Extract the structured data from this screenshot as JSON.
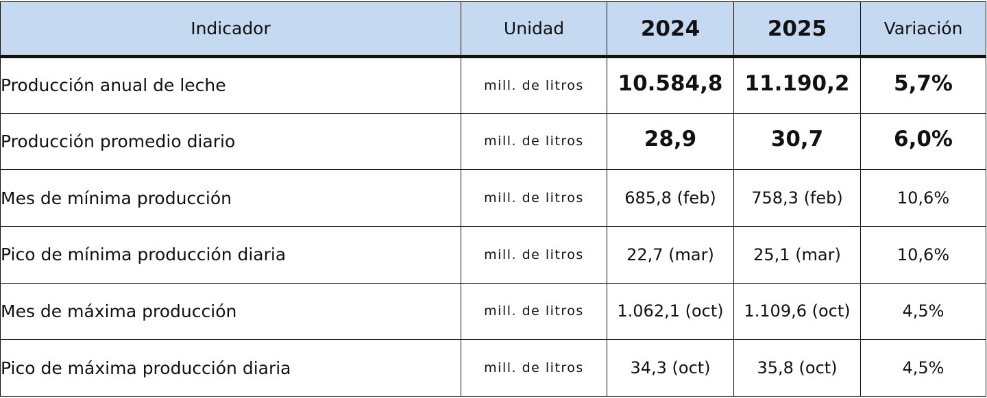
{
  "table": {
    "headers": {
      "indicador": "Indicador",
      "unidad": "Unidad",
      "year1": "2024",
      "year2": "2025",
      "variacion": "Variación"
    },
    "header_bg": "#c5d9f1",
    "rows": [
      {
        "indicador": "Producción anual de leche",
        "unidad": "mill. de litros",
        "v2024": "10.584,8",
        "v2025": "11.190,2",
        "variacion": "5,7%",
        "emphasis": true
      },
      {
        "indicador": "Producción promedio diario",
        "unidad": "mill. de litros",
        "v2024": "28,9",
        "v2025": "30,7",
        "variacion": "6,0%",
        "emphasis": true
      },
      {
        "indicador": "Mes de mínima producción",
        "unidad": "mill. de litros",
        "v2024": "685,8 (feb)",
        "v2025": "758,3 (feb)",
        "variacion": "10,6%",
        "emphasis": false
      },
      {
        "indicador": "Pico de mínima producción diaria",
        "unidad": "mill. de litros",
        "v2024": "22,7 (mar)",
        "v2025": "25,1 (mar)",
        "variacion": "10,6%",
        "emphasis": false
      },
      {
        "indicador": "Mes de máxima producción",
        "unidad": "mill. de litros",
        "v2024": "1.062,1 (oct)",
        "v2025": "1.109,6 (oct)",
        "variacion": "4,5%",
        "emphasis": false
      },
      {
        "indicador": "Pico de máxima producción diaria",
        "unidad": "mill. de litros",
        "v2024": "34,3 (oct)",
        "v2025": "35,8 (oct)",
        "variacion": "4,5%",
        "emphasis": false
      }
    ]
  }
}
